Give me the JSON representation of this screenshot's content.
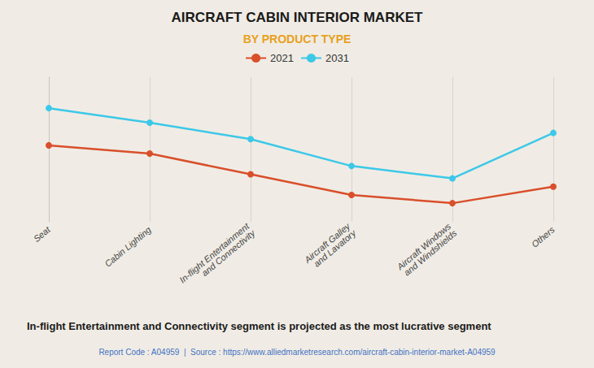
{
  "chart_data": {
    "type": "line",
    "title": "AIRCRAFT CABIN INTERIOR MARKET",
    "subtitle": "BY PRODUCT TYPE",
    "annotations": [
      "In-flight Entertainment and Connectivity segment is projected as the most lucrative segment",
      "Report Code : A04959  |  Source : https://www.alliedmarketresearch.com/aircraft-cabin-interior-market-A04959"
    ],
    "categories": [
      "Seat",
      "Cabin Lighting",
      "In-flight Entertainment\nand Connectivity",
      "Aircraft Galley\nand Lavatory",
      "Aircraft Windows\nand Windshields",
      "Others"
    ],
    "series": [
      {
        "name": "2021",
        "color": "#d94f2b",
        "values": [
          7.2,
          6.8,
          5.8,
          4.8,
          4.4,
          5.2
        ]
      },
      {
        "name": "2031",
        "color": "#3dc8e8",
        "values": [
          9.0,
          8.3,
          7.5,
          6.2,
          5.6,
          7.8
        ]
      }
    ],
    "ylim": [
      3.5,
      10.5
    ],
    "grid": true,
    "tick_labels": "x",
    "marker": "circle",
    "legend": "top"
  }
}
